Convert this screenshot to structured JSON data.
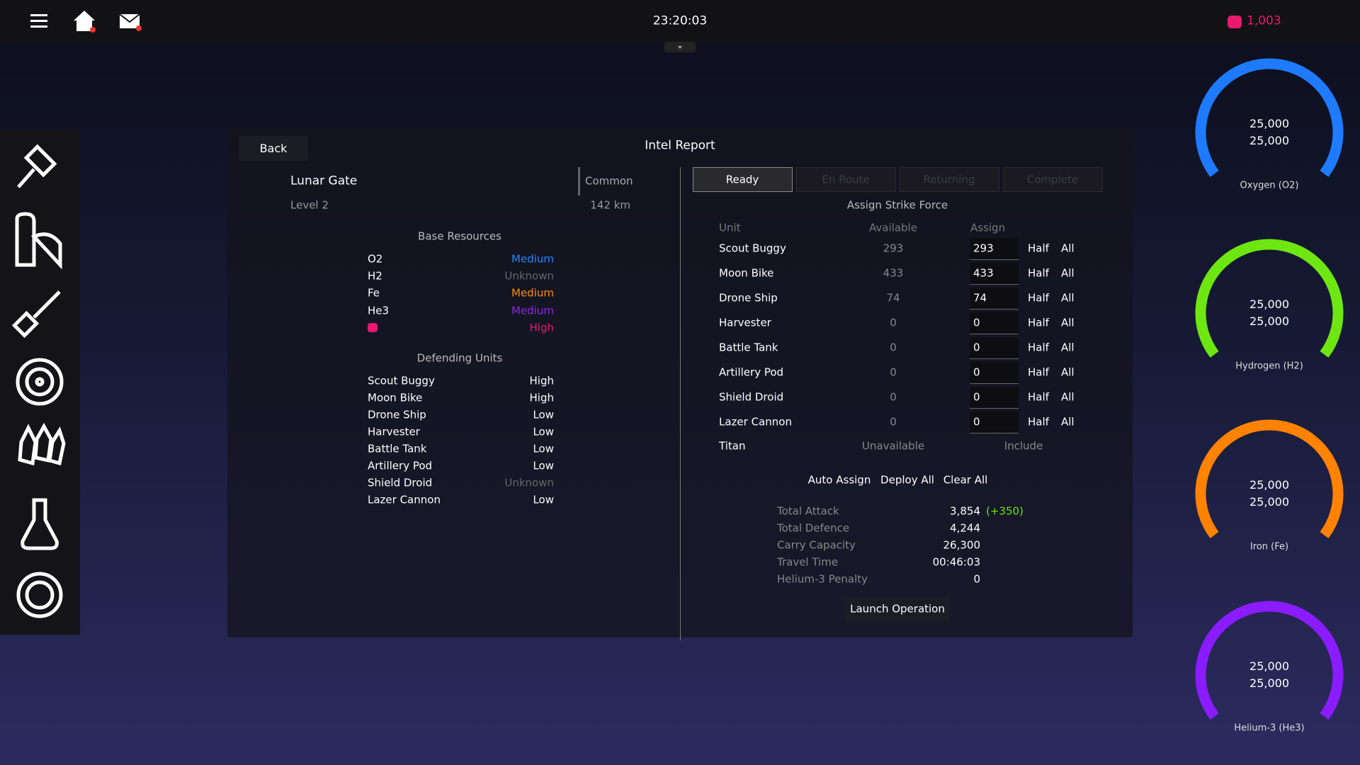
{
  "header": {
    "time": "23:20:03",
    "currency": "1,003"
  },
  "panel": {
    "title": "Intel Report",
    "back": "Back"
  },
  "target": {
    "name": "Lunar Gate",
    "rarity": "Common",
    "level": "Level 2",
    "distance": "142 km"
  },
  "base_resources": {
    "title": "Base Resources",
    "rows": [
      {
        "name": "O2",
        "level": "Medium",
        "color": "#1e88ff"
      },
      {
        "name": "H2",
        "level": "Unknown",
        "color": "#666666"
      },
      {
        "name": "Fe",
        "level": "Medium",
        "color": "#ff8c00"
      },
      {
        "name": "He3",
        "level": "Medium",
        "color": "#8a2be2"
      },
      {
        "name": null,
        "level": "High",
        "color": "#e8196f"
      }
    ]
  },
  "defending_units": {
    "title": "Defending Units",
    "rows": [
      {
        "name": "Scout Buggy",
        "level": "High",
        "color": "#ffffff"
      },
      {
        "name": "Moon Bike",
        "level": "High",
        "color": "#ffffff"
      },
      {
        "name": "Drone Ship",
        "level": "Low",
        "color": "#ffffff"
      },
      {
        "name": "Harvester",
        "level": "Low",
        "color": "#ffffff"
      },
      {
        "name": "Battle Tank",
        "level": "Low",
        "color": "#ffffff"
      },
      {
        "name": "Artillery Pod",
        "level": "Low",
        "color": "#ffffff"
      },
      {
        "name": "Shield Droid",
        "level": "Unknown",
        "color": "#666666"
      },
      {
        "name": "Lazer Cannon",
        "level": "Low",
        "color": "#ffffff"
      }
    ]
  },
  "strike": {
    "tabs": [
      "Ready",
      "En Route",
      "Returning",
      "Complete"
    ],
    "active_tab": 0,
    "title": "Assign Strike Force",
    "headers": [
      "Unit",
      "Available",
      "Assign"
    ],
    "half": "Half",
    "all": "All",
    "rows": [
      {
        "name": "Scout Buggy",
        "available": 293,
        "assign": 293
      },
      {
        "name": "Moon Bike",
        "available": 433,
        "assign": 433
      },
      {
        "name": "Drone Ship",
        "available": 74,
        "assign": 74
      },
      {
        "name": "Harvester",
        "available": 0,
        "assign": 0
      },
      {
        "name": "Battle Tank",
        "available": 0,
        "assign": 0
      },
      {
        "name": "Artillery Pod",
        "available": 0,
        "assign": 0
      },
      {
        "name": "Shield Droid",
        "available": 0,
        "assign": 0
      },
      {
        "name": "Lazer Cannon",
        "available": 0,
        "assign": 0
      }
    ],
    "titan": {
      "name": "Titan",
      "available": "Unavailable",
      "assign": "Include"
    },
    "actions": [
      "Auto Assign",
      "Deploy All",
      "Clear All"
    ],
    "stats": [
      {
        "label": "Total Attack",
        "value": "3,854",
        "bonus": "(+350)"
      },
      {
        "label": "Total Defence",
        "value": "4,244"
      },
      {
        "label": "Carry Capacity",
        "value": "26,300"
      },
      {
        "label": "Travel Time",
        "value": "00:46:03"
      },
      {
        "label": "Helium-3 Penalty",
        "value": "0"
      }
    ],
    "launch": "Launch Operation"
  },
  "gauges": [
    {
      "label": "Oxygen (O2)",
      "color": "#1e7bff",
      "value": {
        "value": 25000,
        "label": "25,000"
      },
      "max": {
        "value": 25000,
        "label": "25,000"
      }
    },
    {
      "label": "Hydrogen (H2)",
      "color": "#6ee612",
      "value": {
        "value": 25000,
        "label": "25,000"
      },
      "max": {
        "value": 25000,
        "label": "25,000"
      }
    },
    {
      "label": "Iron (Fe)",
      "color": "#ff8200",
      "value": {
        "value": 25000,
        "label": "25,000"
      },
      "max": {
        "value": 25000,
        "label": "25,000"
      }
    },
    {
      "label": "Helium-3 (He3)",
      "color": "#8a1cff",
      "value": {
        "value": 25000,
        "label": "25,000"
      },
      "max": {
        "value": 25000,
        "label": "25,000"
      }
    }
  ]
}
